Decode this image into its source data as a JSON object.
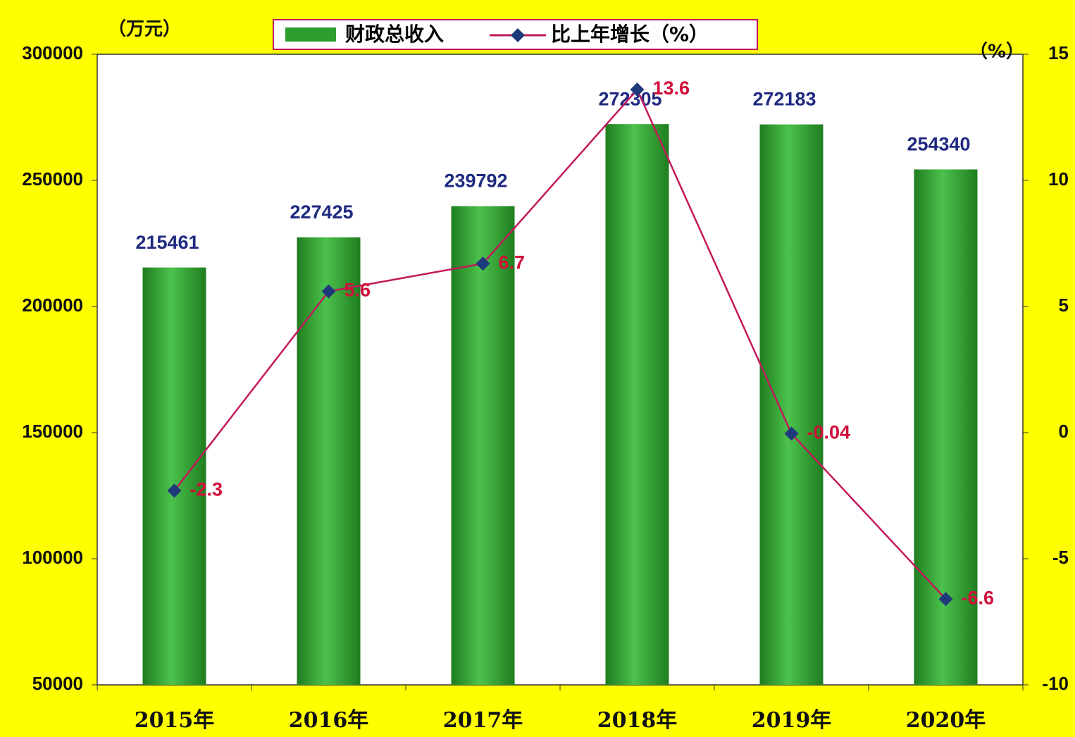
{
  "chart_data": {
    "type": "bar",
    "y_unit": "（万元）",
    "y2_unit": "（%）",
    "categories": [
      "2015年",
      "2016年",
      "2017年",
      "2018年",
      "2019年",
      "2020年"
    ],
    "series": [
      {
        "name": "财政总收入",
        "type": "bar",
        "color": "#2e9e2e",
        "values": [
          215461,
          227425,
          239792,
          272305,
          272183,
          254340
        ],
        "label_color": "#1f2a80"
      },
      {
        "name": "比上年增长（%）",
        "type": "line",
        "axis": "y2",
        "color": "#c2185b",
        "marker_color": "#1f3a7a",
        "values": [
          -2.3,
          5.6,
          6.7,
          13.6,
          -0.04,
          -6.6
        ],
        "label_color": "#d0103a"
      }
    ],
    "ylim": [
      50000,
      300000
    ],
    "yticks": [
      50000,
      100000,
      150000,
      200000,
      250000,
      300000
    ],
    "y2lim": [
      -10,
      15
    ],
    "y2ticks": [
      -10,
      -5,
      0,
      5,
      10,
      15
    ],
    "grid": false,
    "background": "#ffff00",
    "plot_background": "#ffffff"
  }
}
